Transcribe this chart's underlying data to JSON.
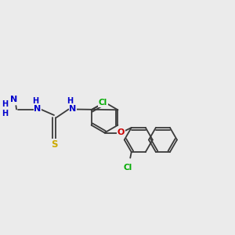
{
  "bg_color": "#ebebeb",
  "bond_color": "#3a3a3a",
  "bond_lw": 1.3,
  "atom_colors": {
    "N": "#0000cc",
    "S": "#ccaa00",
    "O": "#cc0000",
    "Cl": "#00aa00",
    "C": "#3a3a3a",
    "H": "#3a3a3a"
  },
  "font_size": 7.5,
  "font_size_small": 6.5
}
